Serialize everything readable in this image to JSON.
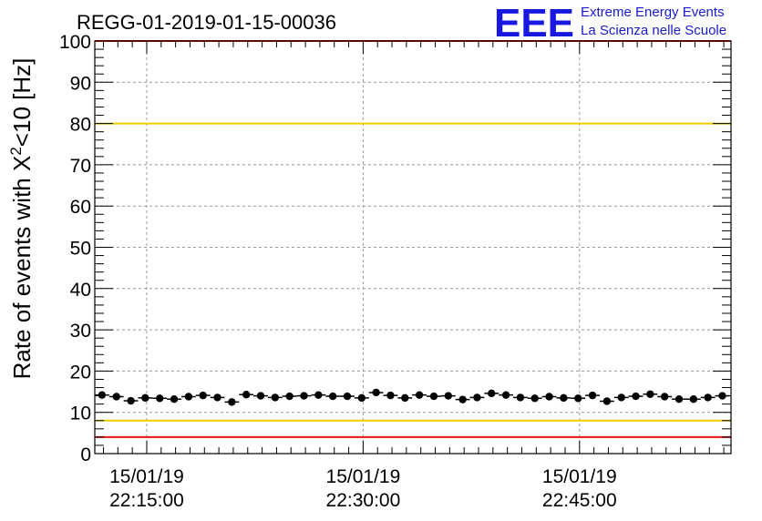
{
  "chart_data": {
    "type": "scatter",
    "title": "REGG-01-2019-01-15-00036",
    "ylabel_main": "Rate of events with X",
    "ylabel_sup": "2",
    "ylabel_tail": "<10 [Hz]",
    "xlabel": "",
    "ylim": [
      0,
      100
    ],
    "y_ticks": [
      "0",
      "10",
      "20",
      "30",
      "40",
      "50",
      "60",
      "70",
      "80",
      "90",
      "100"
    ],
    "x_ticks": [
      {
        "date": "15/01/19",
        "time": "22:15:00",
        "minutes": 15
      },
      {
        "date": "15/01/19",
        "time": "22:30:00",
        "minutes": 30
      },
      {
        "date": "15/01/19",
        "time": "22:45:00",
        "minutes": 45
      }
    ],
    "xlim_minutes": [
      11.4,
      55.5
    ],
    "x_unit": "minutes after 22:00:00 on 15/01/19",
    "reference_lines": [
      {
        "y": 100,
        "color": "#ee1111",
        "role": "upper red limit"
      },
      {
        "y": 80,
        "color": "#eecc00",
        "role": "upper yellow limit"
      },
      {
        "y": 8,
        "color": "#eecc00",
        "role": "lower yellow limit"
      },
      {
        "y": 4,
        "color": "#ee1111",
        "role": "lower red limit"
      }
    ],
    "series": [
      {
        "name": "rate",
        "color": "#000000",
        "x": [
          11.9,
          12.9,
          13.9,
          14.9,
          15.9,
          16.9,
          17.9,
          18.9,
          19.9,
          20.9,
          21.9,
          22.9,
          23.9,
          24.9,
          25.9,
          26.9,
          27.9,
          28.9,
          29.9,
          30.9,
          31.9,
          32.9,
          33.9,
          34.9,
          35.9,
          36.9,
          37.9,
          38.9,
          39.9,
          40.9,
          41.9,
          42.9,
          43.9,
          44.9,
          45.9,
          46.9,
          47.9,
          48.9,
          49.9,
          50.9,
          51.9,
          52.9,
          53.9,
          54.9
        ],
        "y": [
          14.2,
          13.8,
          12.8,
          13.5,
          13.4,
          13.2,
          13.8,
          14.1,
          13.6,
          12.5,
          14.3,
          14.0,
          13.6,
          13.9,
          14.0,
          14.2,
          13.9,
          13.9,
          13.5,
          14.8,
          14.1,
          13.5,
          14.2,
          13.9,
          14.0,
          13.1,
          13.6,
          14.6,
          14.2,
          13.6,
          13.4,
          13.8,
          13.5,
          13.4,
          14.1,
          12.7,
          13.6,
          13.9,
          14.4,
          13.8,
          13.2,
          13.2,
          13.6,
          14.0
        ]
      }
    ],
    "grid": true
  },
  "logo": {
    "mark": "EEE",
    "line1": "Extreme Energy Events",
    "line2": "La Scienza nelle Scuole"
  },
  "colors": {
    "red": "#ee1111",
    "yellow": "#eecc00",
    "logo_blue": "#1818e0",
    "grid": "#999999"
  }
}
